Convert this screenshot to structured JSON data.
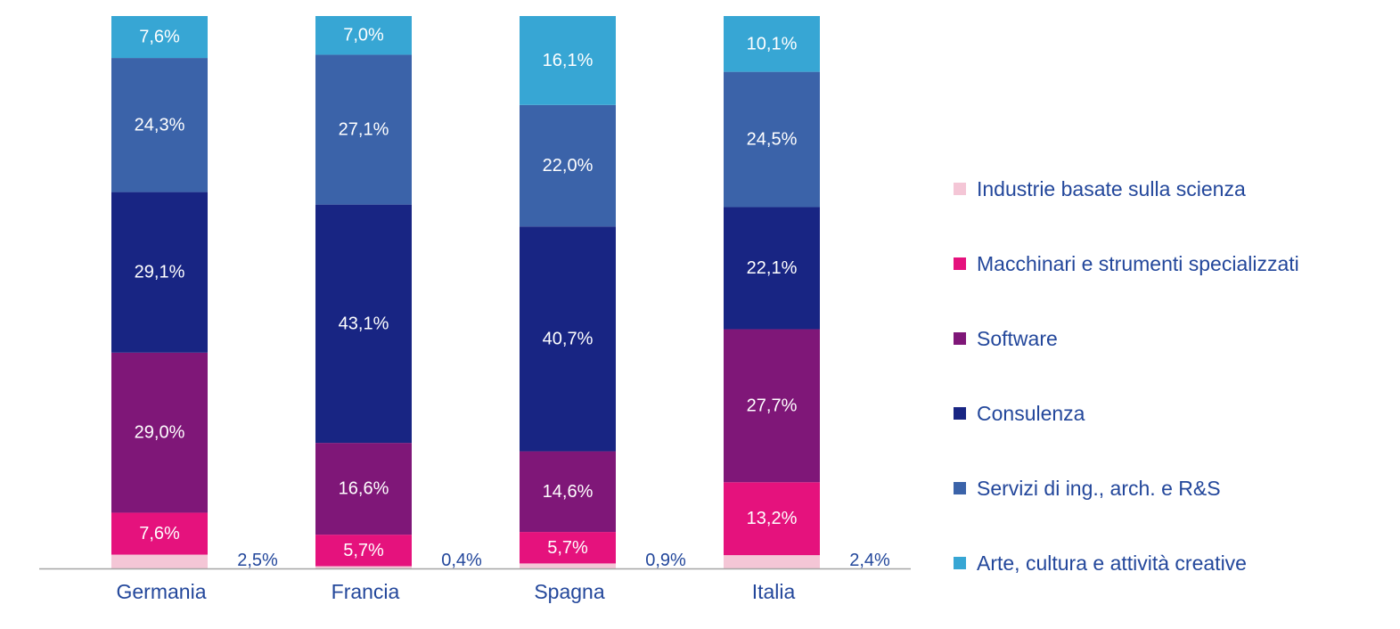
{
  "chart_data": {
    "type": "bar",
    "stacked": true,
    "categories": [
      "Germania",
      "Francia",
      "Spagna",
      "Italia"
    ],
    "series": [
      {
        "name": "Industrie basate sulla scienza",
        "values": [
          2.5,
          0.4,
          0.9,
          2.4
        ],
        "labels": [
          "2,5%",
          "0,4%",
          "0,9%",
          "2,4%"
        ],
        "color": "#f4c6d6",
        "label_position": "outside"
      },
      {
        "name": "Macchinari e strumenti specializzati",
        "values": [
          7.6,
          5.7,
          5.7,
          13.2
        ],
        "labels": [
          "7,6%",
          "5,7%",
          "5,7%",
          "13,2%"
        ],
        "color": "#e5127d"
      },
      {
        "name": "Software",
        "values": [
          29.0,
          16.6,
          14.6,
          27.7
        ],
        "labels": [
          "29,0%",
          "16,6%",
          "14,6%",
          "27,7%"
        ],
        "color": "#7f1778"
      },
      {
        "name": "Consulenza",
        "values": [
          29.1,
          43.1,
          40.7,
          22.1
        ],
        "labels": [
          "29,1%",
          "43,1%",
          "40,7%",
          "22,1%"
        ],
        "color": "#182583"
      },
      {
        "name": "Servizi di ing., arch. e R&S",
        "values": [
          24.3,
          27.1,
          22.0,
          24.5
        ],
        "labels": [
          "24,3%",
          "27,1%",
          "22,0%",
          "24,5%"
        ],
        "color": "#3b63a9"
      },
      {
        "name": "Arte, cultura e attività creative",
        "values": [
          7.6,
          7.0,
          16.1,
          10.1
        ],
        "labels": [
          "7,6%",
          "7,0%",
          "16,1%",
          "10,1%"
        ],
        "color": "#37a6d4"
      }
    ],
    "ylim": [
      0,
      100
    ],
    "grid": false,
    "legend_position": "right",
    "legend_order": [
      "Industrie basate sulla scienza",
      "Macchinari e strumenti specializzati",
      "Software",
      "Consulenza",
      "Servizi di ing., arch. e R&S",
      "Arte, cultura e attività creative"
    ],
    "axis_color": "#a6a6a6",
    "text_color": "#23479b"
  }
}
